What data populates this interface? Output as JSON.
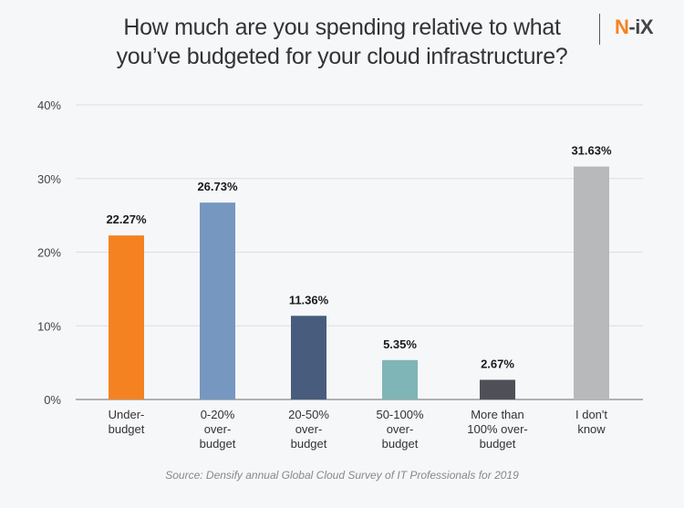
{
  "header": {
    "title_line1": "How much are you spending relative to what",
    "title_line2": "you’ve budgeted for your cloud infrastructure?",
    "logo_n": "N",
    "logo_rest": "-iX"
  },
  "source": "Source: Densify annual Global Cloud Survey of IT Professionals for 2019",
  "chart_data": {
    "type": "bar",
    "title": "How much are you spending relative to what you’ve budgeted for your cloud infrastructure?",
    "xlabel": "",
    "ylabel": "",
    "ylim": [
      0,
      40
    ],
    "yticks": [
      0,
      10,
      20,
      30,
      40
    ],
    "ytick_labels": [
      "0%",
      "10%",
      "20%",
      "30%",
      "40%"
    ],
    "grid": true,
    "categories": [
      [
        "Under-",
        "budget"
      ],
      [
        "0-20%",
        "over-",
        "budget"
      ],
      [
        "20-50%",
        "over-",
        "budget"
      ],
      [
        "50-100%",
        "over-",
        "budget"
      ],
      [
        "More than",
        "100% over-",
        "budget"
      ],
      [
        "I don't",
        "know"
      ]
    ],
    "values": [
      22.27,
      26.73,
      11.36,
      5.35,
      2.67,
      31.63
    ],
    "value_labels": [
      "22.27%",
      "26.73%",
      "11.36%",
      "5.35%",
      "2.67%",
      "31.63%"
    ],
    "colors": [
      "#f58220",
      "#7597c0",
      "#485c7d",
      "#7fb5b6",
      "#4f5057",
      "#b8b9bb"
    ]
  }
}
